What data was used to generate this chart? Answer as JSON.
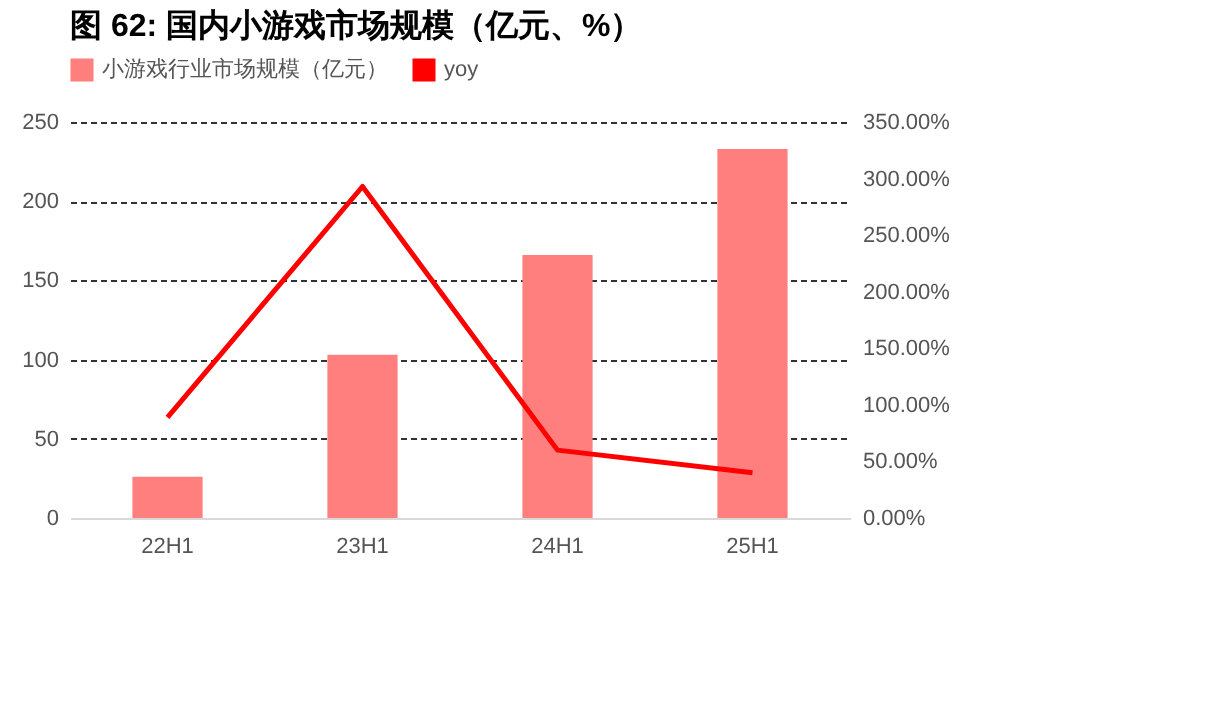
{
  "chart_data": {
    "type": "bar",
    "title": "图 62: 国内小游戏市场规模（亿元、%）",
    "categories": [
      "22H1",
      "23H1",
      "24H1",
      "25H1"
    ],
    "series": [
      {
        "name": "小游戏行业市场规模（亿元）",
        "color": "#ff7f7f",
        "values": [
          26,
          103,
          166,
          233
        ]
      },
      {
        "name": "yoy",
        "type": "line",
        "axis": "y2",
        "color": "#ff0000",
        "values": [
          89,
          293,
          60,
          40
        ]
      }
    ],
    "ylim": [
      0,
      250
    ],
    "yticks": [
      0,
      50,
      100,
      150,
      200,
      250
    ],
    "y2lim": [
      0,
      350
    ],
    "y2ticks": [
      {
        "value": 0,
        "label": "0.00%"
      },
      {
        "value": 50,
        "label": "50.00%"
      },
      {
        "value": 100,
        "label": "100.00%"
      },
      {
        "value": 150,
        "label": "150.00%"
      },
      {
        "value": 200,
        "label": "200.00%"
      },
      {
        "value": 250,
        "label": "250.00%"
      },
      {
        "value": 300,
        "label": "300.00%"
      },
      {
        "value": 350,
        "label": "350.00%"
      }
    ],
    "grid": "y",
    "legend": "top"
  }
}
